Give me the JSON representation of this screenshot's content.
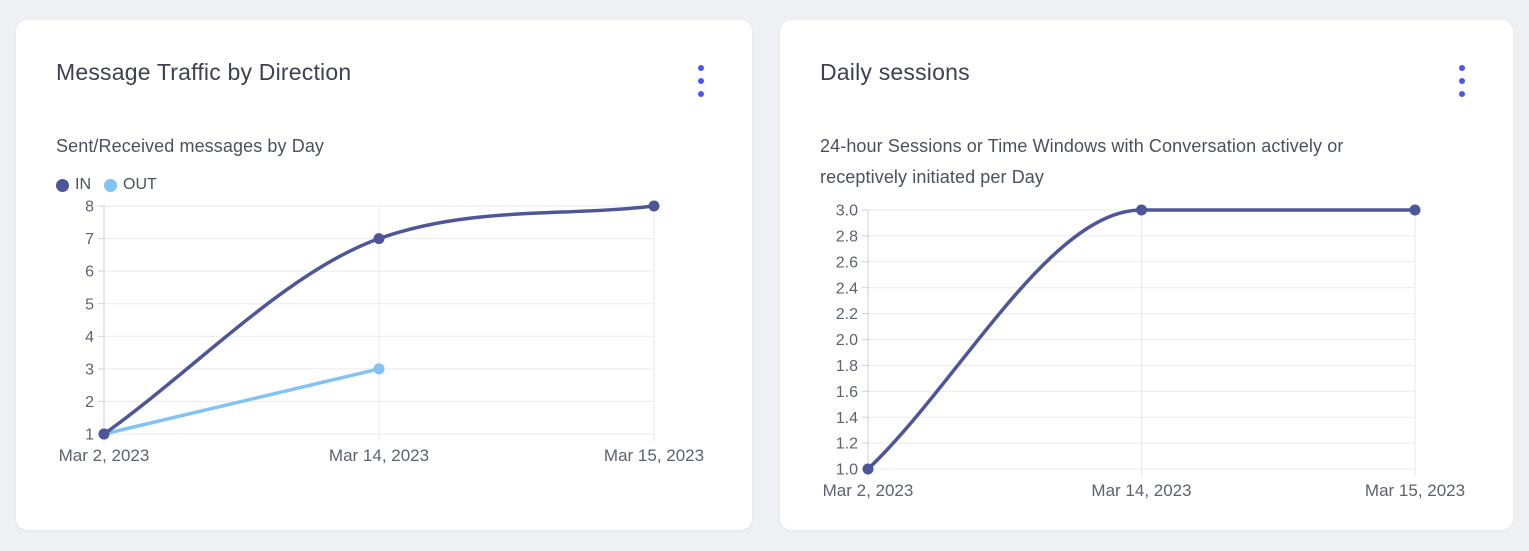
{
  "colors": {
    "page_bg": "#eef0f3",
    "card_bg": "#ffffff",
    "accent": "#5155ee",
    "title_text": "#3d4250",
    "subtitle_text": "#4b505c",
    "tick_text": "#5d626e",
    "grid": "#e8eaee",
    "axis": "#ced1d8",
    "series_in": "#4e5598",
    "series_out": "#80c3f4"
  },
  "cards": [
    {
      "title": "Message Traffic by Direction",
      "subtitle": "Sent/Received messages by Day",
      "menu_icon": "kebab-menu"
    },
    {
      "title": "Daily sessions",
      "subtitle": "24-hour Sessions or Time Windows with Conversation actively or receptively initiated per Day",
      "menu_icon": "kebab-menu"
    }
  ],
  "chart_data": [
    {
      "type": "line",
      "title": "Message Traffic by Direction",
      "subtitle": "Sent/Received messages by Day",
      "categories": [
        "Mar 2, 2023",
        "Mar 14, 2023",
        "Mar 15, 2023"
      ],
      "series": [
        {
          "name": "IN",
          "color": "#4e5598",
          "values": [
            1,
            7,
            8
          ]
        },
        {
          "name": "OUT",
          "color": "#80c3f4",
          "values": [
            1,
            3,
            null
          ]
        }
      ],
      "ylim": [
        1,
        8
      ],
      "yticks": [
        8,
        7,
        6,
        5,
        4,
        3,
        2,
        1
      ],
      "ytick_labels": [
        "8",
        "7",
        "6",
        "5",
        "4",
        "3",
        "2",
        "1"
      ],
      "grid": true,
      "curve": "monotone",
      "legend_position": "top-left"
    },
    {
      "type": "line",
      "title": "Daily sessions",
      "subtitle": "24-hour Sessions or Time Windows with Conversation actively or receptively initiated per Day",
      "categories": [
        "Mar 2, 2023",
        "Mar 14, 2023",
        "Mar 15, 2023"
      ],
      "series": [
        {
          "color": "#4e5598",
          "values": [
            1,
            3,
            3
          ]
        }
      ],
      "ylim": [
        1,
        3
      ],
      "yticks": [
        3.0,
        2.8,
        2.6,
        2.4,
        2.2,
        2.0,
        1.8,
        1.6,
        1.4,
        1.2,
        1.0
      ],
      "ytick_labels": [
        "3.0",
        "2.8",
        "2.6",
        "2.4",
        "2.2",
        "2.0",
        "1.8",
        "1.6",
        "1.4",
        "1.2",
        "1.0"
      ],
      "grid": true,
      "curve": "monotone",
      "legend_position": "none"
    }
  ]
}
